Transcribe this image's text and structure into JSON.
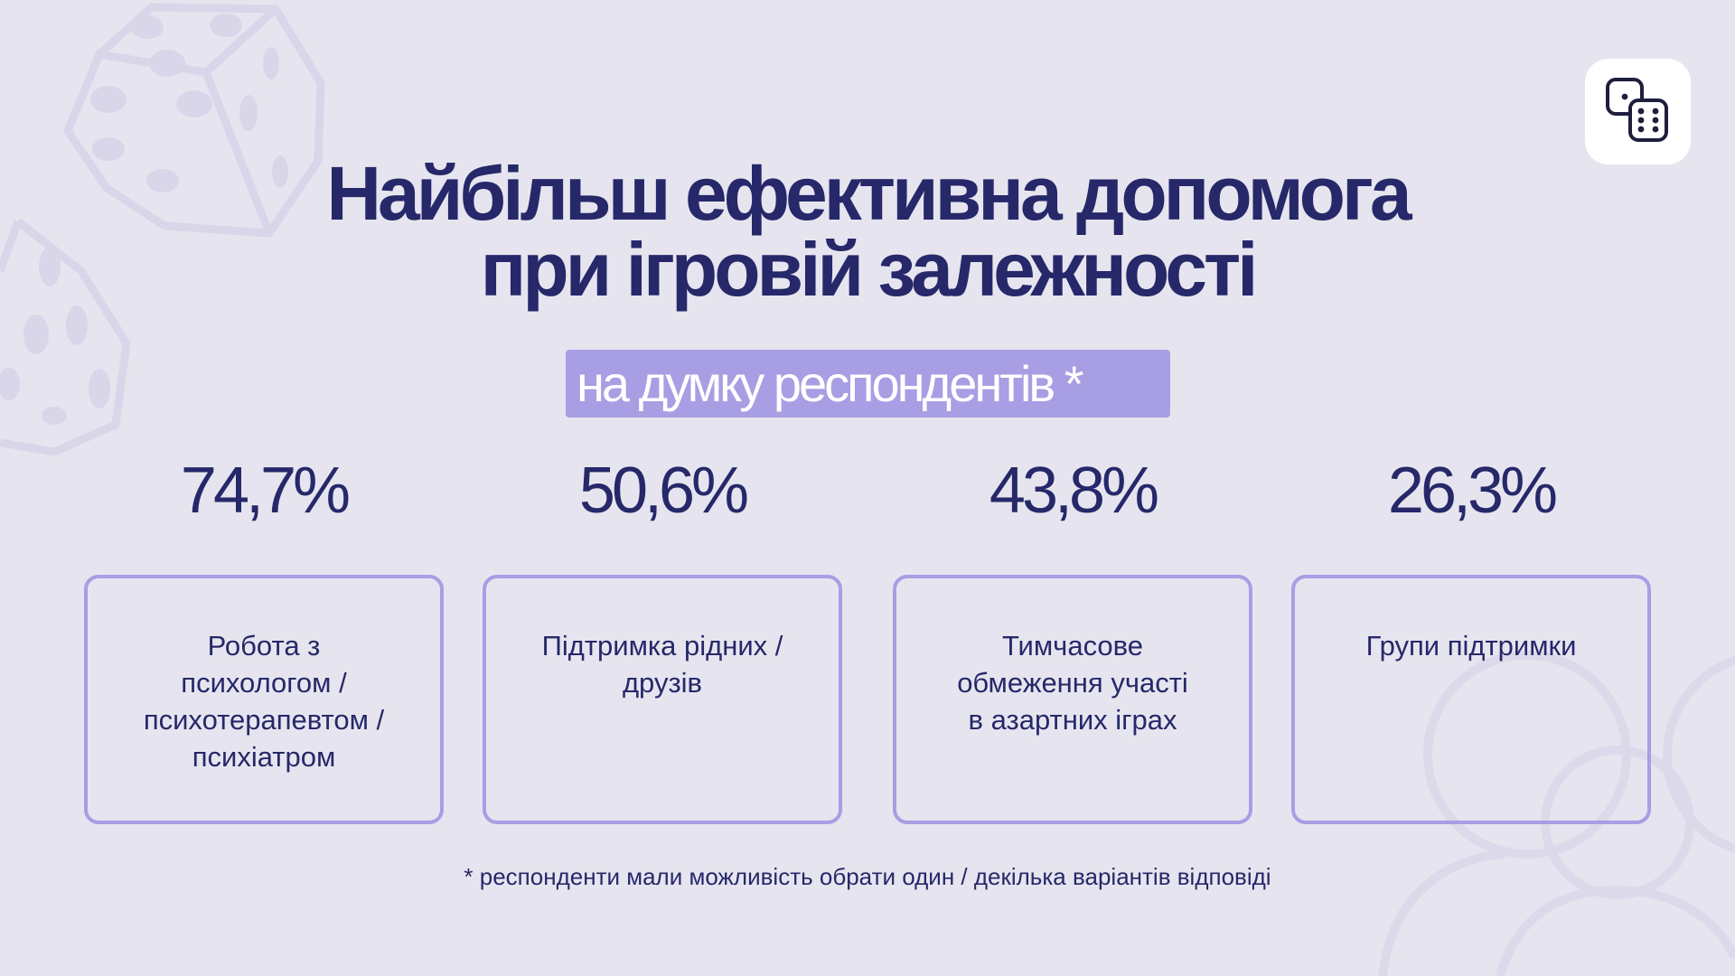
{
  "title": {
    "line1": "Найбільш ефективна допомога",
    "line2": "при ігровій залежності"
  },
  "subtitle": "на думку респондентів *",
  "footnote": "* респонденти мали можливість обрати один / декілька варіантів відповіді",
  "colors": {
    "background": "#e6e5ef",
    "text": "#26286a",
    "accent": "#a89ee4",
    "card_border": "#a89ee4"
  },
  "icons": {
    "logo": "dice-icon",
    "decoration": "dice-icon"
  },
  "chart_data": {
    "type": "table",
    "unit": "%",
    "categories": [
      "Робота з психологом / психотерапевтом / психіатром",
      "Підтримка рідних / друзів",
      "Тимчасове обмеження участі в азартних іграх",
      "Групи підтримки"
    ],
    "values": [
      74.7,
      50.6,
      43.8,
      26.3
    ],
    "value_labels": [
      "74,7%",
      "50,6%",
      "43,8%",
      "26,3%"
    ],
    "items": [
      {
        "value": 74.7,
        "value_label": "74,7%",
        "label_lines": [
          "Робота з",
          "психологом /",
          "психотерапевтом /",
          "психіатром"
        ]
      },
      {
        "value": 50.6,
        "value_label": "50,6%",
        "label_lines": [
          "Підтримка рідних /",
          "друзів"
        ]
      },
      {
        "value": 43.8,
        "value_label": "43,8%",
        "label_lines": [
          "Тимчасове",
          "обмеження участі",
          "в азартних іграх"
        ]
      },
      {
        "value": 26.3,
        "value_label": "26,3%",
        "label_lines": [
          "Групи підтримки"
        ]
      }
    ]
  }
}
